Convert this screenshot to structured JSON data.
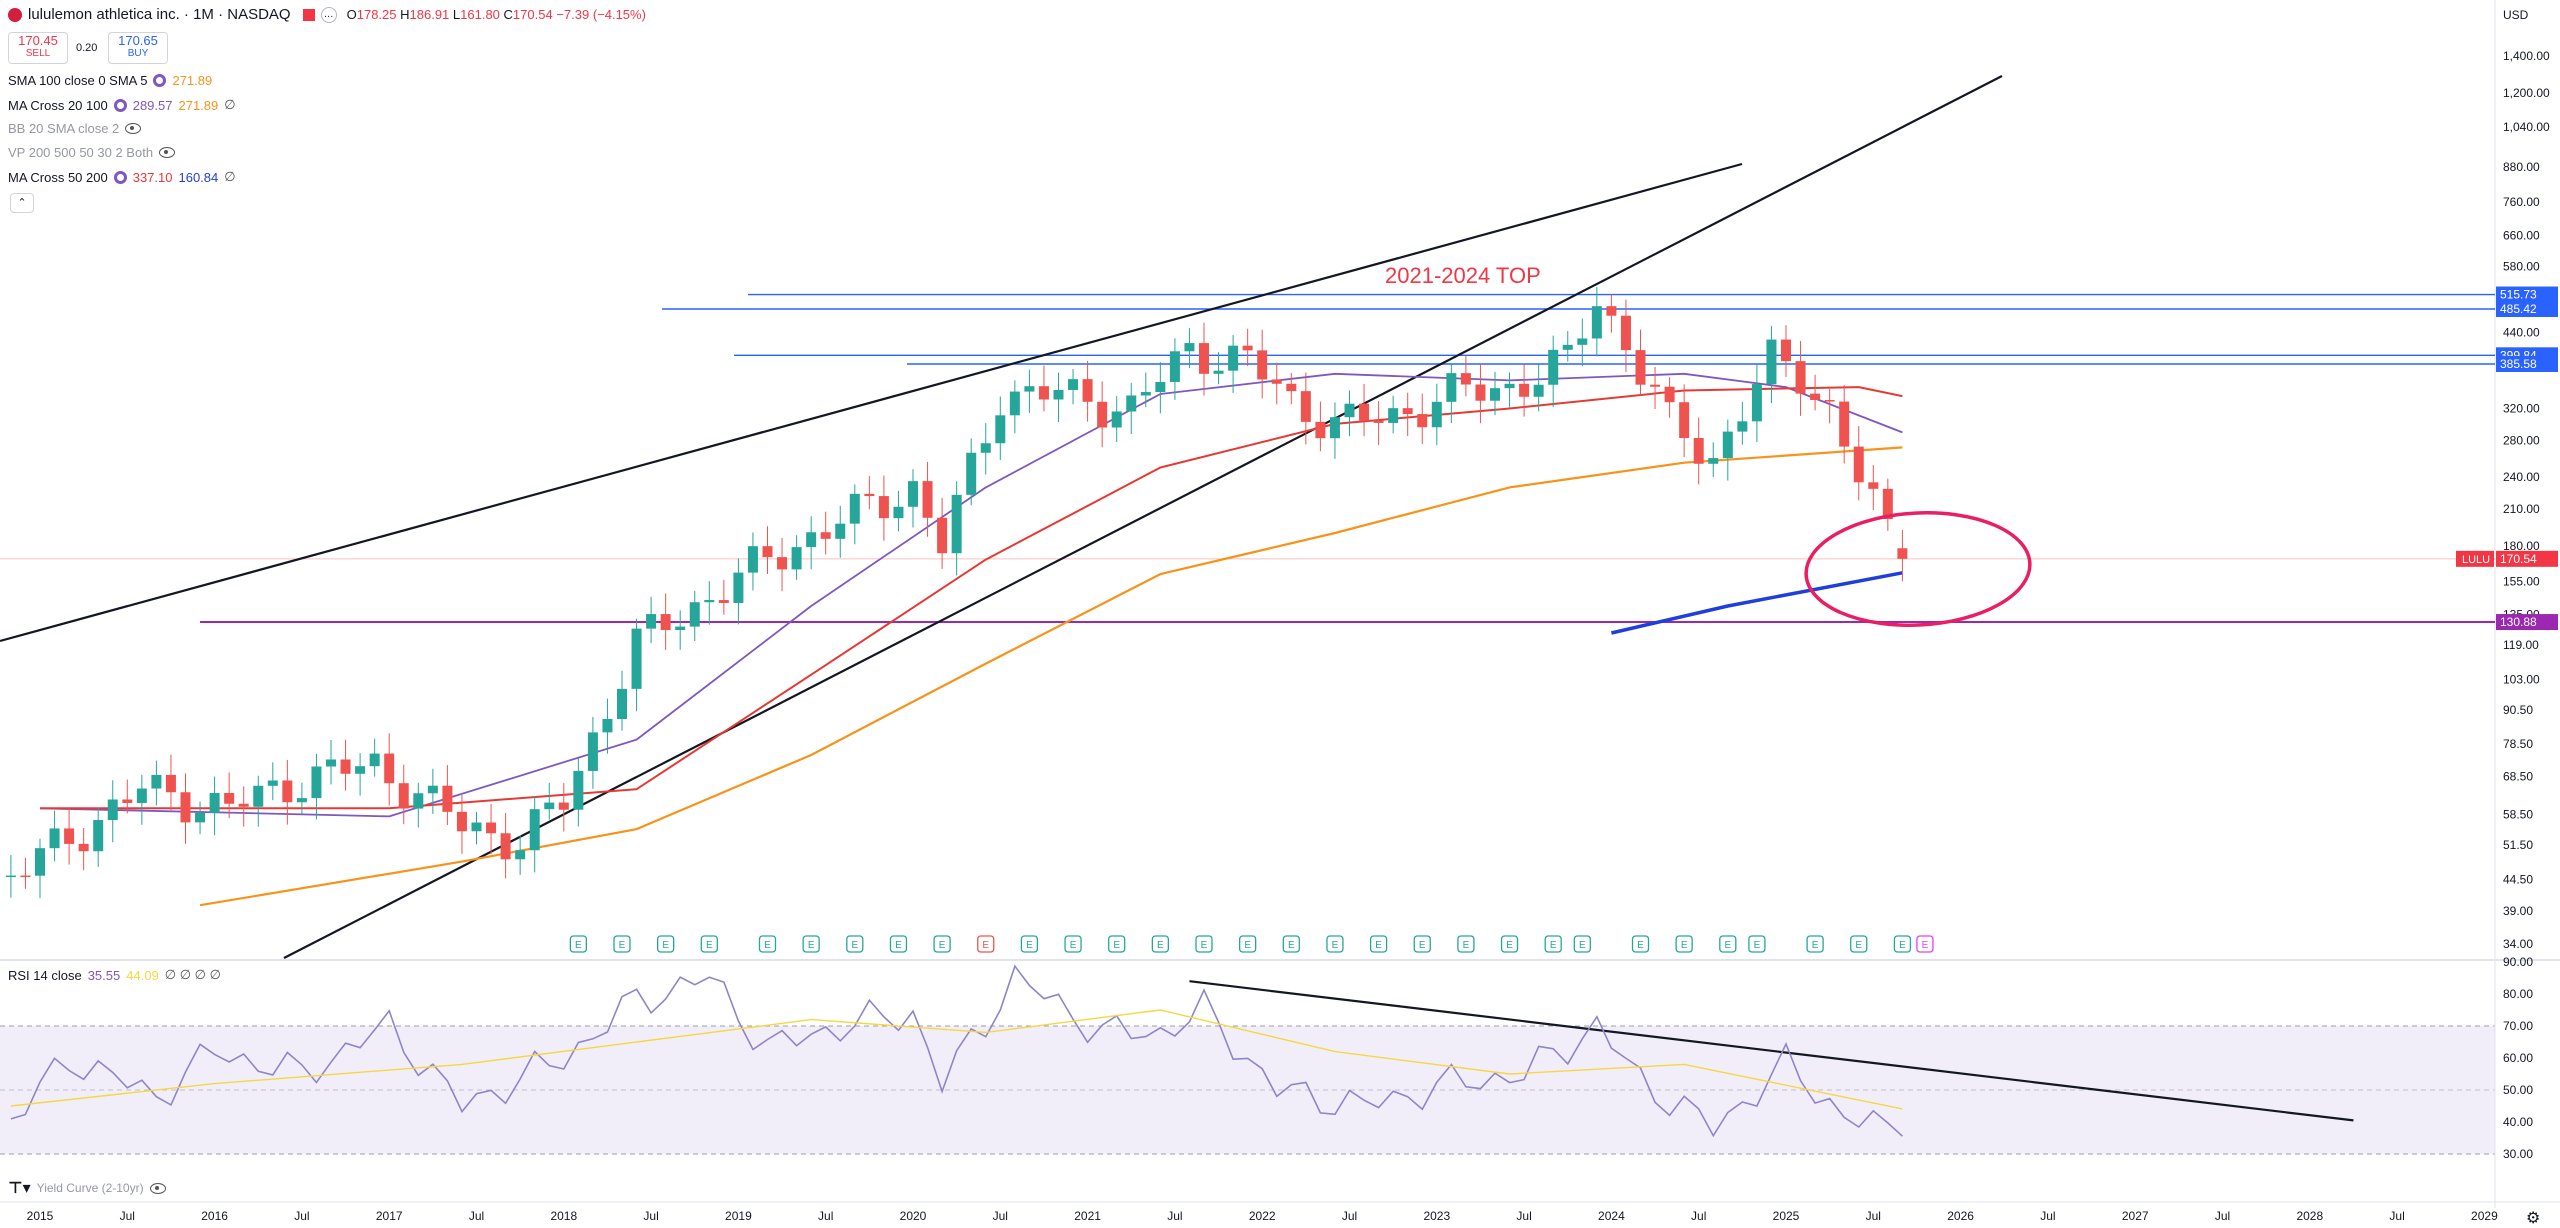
{
  "header": {
    "title": "lululemon athletica inc. · 1M · NASDAQ",
    "ohlc": {
      "o_label": "O",
      "o": "178.25",
      "h_label": "H",
      "h": "186.91",
      "l_label": "L",
      "l": "161.80",
      "c_label": "C",
      "c": "170.54",
      "change": "−7.39 (−4.15%)"
    },
    "sell_price": "170.45",
    "sell_label": "SELL",
    "spread": "0.20",
    "buy_price": "170.65",
    "buy_label": "BUY",
    "currency": "USD"
  },
  "indicators": [
    {
      "name": "SMA 100 close 0 SMA 5",
      "values": [
        "271.89"
      ],
      "colors": [
        "#f7931a"
      ],
      "settings": true
    },
    {
      "name": "MA Cross 20 100",
      "values": [
        "289.57",
        "271.89",
        "∅"
      ],
      "colors": [
        "#7e57c2",
        "#f7931a",
        "#555555"
      ],
      "settings": true
    },
    {
      "name": "BB 20 SMA close 2",
      "values": [],
      "colors": [],
      "hidden": true
    },
    {
      "name": "VP 200 500 50 30 2 Both",
      "values": [],
      "colors": [],
      "hidden": true
    },
    {
      "name": "MA Cross 50 200",
      "values": [
        "337.10",
        "160.84",
        "∅"
      ],
      "colors": [
        "#e53935",
        "#1e3fdc",
        "#555555"
      ],
      "settings": true
    }
  ],
  "rsi_legend": {
    "name": "RSI 14 close",
    "values": [
      "35.55",
      "44.09",
      "∅ ∅ ∅ ∅"
    ],
    "colors": [
      "#7e57c2",
      "#f5d742",
      "#555555"
    ]
  },
  "yield_curve_label": "Yield Curve (2-10yr)",
  "annotation_text": "2021-2024 TOP",
  "price_axis_labels": [
    "1,400.00",
    "1,200.00",
    "1,040.00",
    "880.00",
    "760.00",
    "660.00",
    "580.00",
    "500.00",
    "440.00",
    "380.00",
    "320.00",
    "280.00",
    "240.00",
    "210.00",
    "180.00",
    "155.00",
    "135.00",
    "119.00",
    "103.00",
    "90.50",
    "78.50",
    "68.50",
    "58.50",
    "51.50",
    "44.50",
    "39.00",
    "34.00"
  ],
  "price_tags": [
    {
      "label": "515.73",
      "color": "#2962ff"
    },
    {
      "label": "485.42",
      "color": "#2962ff"
    },
    {
      "label": "399.84",
      "color": "#2962ff"
    },
    {
      "label": "385.58",
      "color": "#2962ff"
    },
    {
      "label": "170.54",
      "color": "#f23645",
      "ticker": "LULU"
    },
    {
      "label": "130.88",
      "color": "#9c27b0"
    }
  ],
  "rsi_axis_labels": [
    "90.00",
    "80.00",
    "70.00",
    "60.00",
    "50.00",
    "40.00",
    "30.00"
  ],
  "time_axis_labels": [
    "2015",
    "Jul",
    "2016",
    "Jul",
    "2017",
    "Jul",
    "2018",
    "Jul",
    "2019",
    "Jul",
    "2020",
    "Jul",
    "2021",
    "Jul",
    "2022",
    "Jul",
    "2023",
    "Jul",
    "2024",
    "Jul",
    "2025",
    "Jul",
    "2026",
    "Jul",
    "2027",
    "Jul",
    "2028",
    "Jul",
    "2029"
  ],
  "earnings_marker": "E",
  "colors": {
    "up": "#26a69a",
    "down": "#ef5350",
    "ma20": "#7e57c2",
    "sma100": "#f7931a",
    "ma50": "#e53935",
    "ma200": "#1e3fdc",
    "hline": "#2962ff",
    "support": "#9c27b0",
    "circle": "#e91e63",
    "rsi": "#8c86c8",
    "rsi_ma": "#f5d742"
  },
  "chart_data": [
    {
      "type": "candlestick",
      "title": "lululemon athletica inc. · 1M · NASDAQ",
      "y_scale": "log",
      "ylim": [
        34,
        1400
      ],
      "x_range": [
        "2014-11",
        "2029-06"
      ],
      "annotations": [
        "2021-2024 TOP"
      ],
      "hlines": [
        515.73,
        485.42,
        399.84,
        385.58,
        130.88
      ],
      "last_price": 170.54,
      "series": [
        {
          "name": "price",
          "kind": "candles",
          "months": [
            "2014-11",
            "2015-08",
            "2016-02",
            "2016-07",
            "2016-12",
            "2017-06",
            "2017-10",
            "2018-01",
            "2018-06",
            "2018-10",
            "2019-03",
            "2019-08",
            "2020-01",
            "2020-03",
            "2020-07",
            "2020-11",
            "2021-04",
            "2021-08",
            "2021-12",
            "2022-03",
            "2022-06",
            "2022-10",
            "2023-02",
            "2023-06",
            "2023-10",
            "2023-12",
            "2024-02",
            "2024-05",
            "2024-08",
            "2024-12",
            "2025-02",
            "2025-04",
            "2025-06",
            "2025-08",
            "2025-09"
          ],
          "close": [
            45,
            65,
            60,
            68,
            72,
            56,
            52,
            62,
            120,
            140,
            170,
            200,
            230,
            180,
            340,
            340,
            320,
            410,
            390,
            330,
            300,
            310,
            340,
            350,
            390,
            510,
            420,
            300,
            260,
            390,
            370,
            320,
            240,
            190,
            170.54
          ]
        },
        {
          "name": "MA Cross 20 100",
          "values_at_months": {
            "2015-01": 60,
            "2017-01": 58,
            "2018-06": 80,
            "2019-06": 140,
            "2020-06": 230,
            "2021-06": 340,
            "2022-06": 370,
            "2023-06": 360,
            "2024-06": 370,
            "2025-01": 350,
            "2025-09": 289.57
          }
        },
        {
          "name": "SMA 100 close 0 SMA 5",
          "values_at_months": {
            "2015-12": 40,
            "2017-06": 48,
            "2018-06": 55,
            "2019-06": 75,
            "2020-06": 110,
            "2021-06": 160,
            "2022-06": 190,
            "2023-06": 230,
            "2024-06": 255,
            "2025-09": 271.89
          }
        },
        {
          "name": "MA Cross 50 200",
          "values_at_months": {
            "2015-01": 60,
            "2017-01": 60,
            "2018-06": 65,
            "2019-06": 105,
            "2020-06": 170,
            "2021-06": 250,
            "2022-06": 300,
            "2023-06": 320,
            "2024-06": 345,
            "2025-06": 350,
            "2025-09": 337.1
          }
        },
        {
          "name": "MA Cross 50 200 slow",
          "values_at_months": {
            "2024-01": 125,
            "2024-09": 140,
            "2025-09": 160.84
          }
        }
      ]
    },
    {
      "type": "line",
      "title": "RSI 14 close",
      "ylim": [
        30,
        90
      ],
      "series": [
        {
          "name": "RSI",
          "values_at_months": {
            "2014-11": 40,
            "2015-03": 60,
            "2015-09": 48,
            "2016-01": 62,
            "2016-07": 55,
            "2017-01": 70,
            "2017-06": 45,
            "2018-01": 60,
            "2018-06": 78,
            "2018-11": 85,
            "2019-03": 63,
            "2019-08": 70,
            "2020-01": 74,
            "2020-03": 52,
            "2020-08": 85,
            "2021-02": 68,
            "2021-06": 68,
            "2021-09": 75,
            "2022-02": 50,
            "2022-08": 45,
            "2023-02": 52,
            "2023-07": 55,
            "2023-12": 70,
            "2024-03": 53,
            "2024-08": 38,
            "2025-01": 58,
            "2025-05": 42,
            "2025-09": 35.55
          }
        },
        {
          "name": "RSI MA",
          "values_at_months": {
            "2014-11": 45,
            "2016-01": 52,
            "2017-06": 58,
            "2018-06": 65,
            "2019-06": 72,
            "2020-06": 68,
            "2021-06": 75,
            "2022-06": 62,
            "2023-06": 55,
            "2024-06": 58,
            "2025-09": 44.09
          }
        }
      ]
    }
  ]
}
